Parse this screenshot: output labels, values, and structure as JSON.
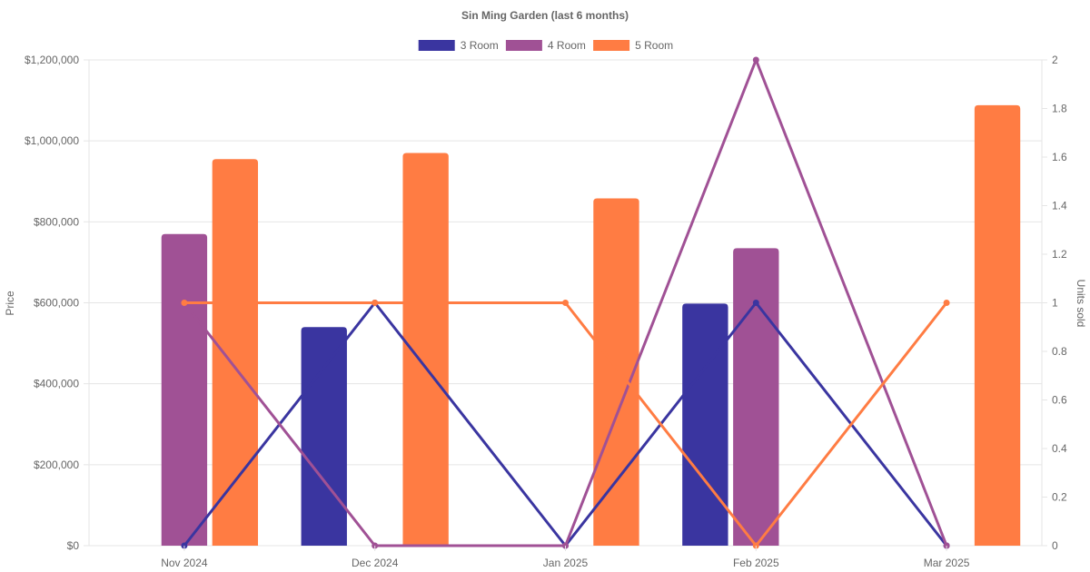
{
  "chart_data": {
    "type": "bar",
    "title": "Sin Ming Garden (last 6 months)",
    "categories": [
      "Nov 2024",
      "Dec 2024",
      "Jan 2025",
      "Feb 2025",
      "Mar 2025"
    ],
    "ylabel": "Price",
    "y2label": "Units sold",
    "ylim": [
      0,
      1200000
    ],
    "y2lim": [
      0,
      2
    ],
    "yticks": [
      "$0",
      "$200,000",
      "$400,000",
      "$600,000",
      "$800,000",
      "$1,000,000",
      "$1,200,000"
    ],
    "y2ticks": [
      "0",
      "0.2",
      "0.4",
      "0.6",
      "0.8",
      "1",
      "1.2",
      "1.4",
      "1.6",
      "1.8",
      "2"
    ],
    "grid": true,
    "legend": "top-center",
    "series": [
      {
        "name": "3 Room",
        "color": "#3a35a0",
        "price": [
          null,
          540000,
          null,
          598000,
          null
        ],
        "units": [
          0,
          1,
          0,
          1,
          0
        ]
      },
      {
        "name": "4 Room",
        "color": "#a05195",
        "price": [
          770000,
          null,
          null,
          735000,
          null
        ],
        "units": [
          1,
          0,
          0,
          2,
          0
        ]
      },
      {
        "name": "5 Room",
        "color": "#ff7c43",
        "price": [
          955000,
          970000,
          858000,
          null,
          1088000
        ],
        "units": [
          1,
          1,
          1,
          0,
          1
        ]
      }
    ]
  }
}
